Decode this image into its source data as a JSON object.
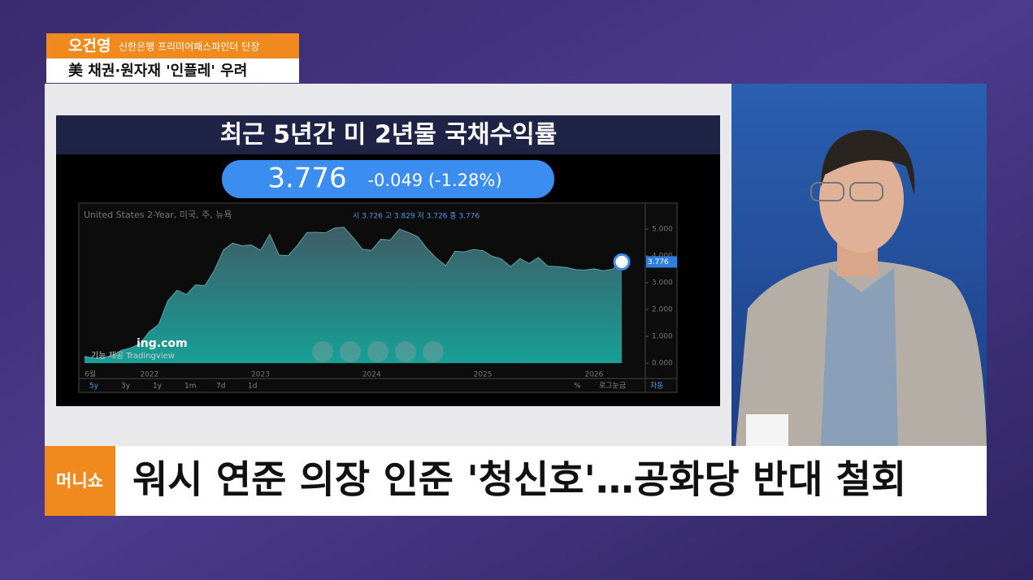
{
  "name_tag": {
    "name": "오건영",
    "role": "신한은행 프리미어패스파인더 단장",
    "topic": "美 채권·원자재 '인플레' 우려"
  },
  "panel": {
    "title": "최근 5년간 미 2년물 국채수익률",
    "price": "3.776",
    "change": "-0.049 (-1.28%)"
  },
  "chart_data": {
    "type": "area",
    "legend_text": "United States 2-Year, 미국, 주, 뉴욕",
    "ohlc_text": "시 3.726 고 3.829 저 3.726 종 3.776",
    "watermark": "ing.com",
    "credit": "기능 제공 Tradingview",
    "categories": [
      "6월",
      null,
      null,
      null,
      null,
      null,
      null,
      "2022",
      null,
      null,
      null,
      null,
      null,
      null,
      null,
      null,
      null,
      null,
      null,
      "2023",
      null,
      null,
      null,
      null,
      null,
      null,
      null,
      null,
      null,
      null,
      null,
      "2024",
      null,
      null,
      null,
      null,
      null,
      null,
      null,
      null,
      null,
      null,
      null,
      "2025",
      null,
      null,
      null,
      null,
      null,
      null,
      null,
      null,
      null,
      null,
      null,
      "2026",
      null,
      null,
      null
    ],
    "values": [
      0.25,
      0.19,
      0.21,
      0.28,
      0.48,
      0.57,
      0.73,
      1.18,
      1.44,
      2.33,
      2.72,
      2.56,
      2.92,
      2.89,
      3.45,
      4.22,
      4.48,
      4.38,
      4.41,
      4.21,
      4.81,
      4.03,
      4.01,
      4.4,
      4.87,
      4.88,
      4.86,
      5.04,
      5.07,
      4.68,
      4.25,
      4.21,
      4.62,
      4.59,
      5.0,
      4.87,
      4.71,
      4.26,
      3.91,
      3.64,
      4.17,
      4.15,
      4.24,
      4.2,
      3.99,
      3.89,
      3.6,
      3.9,
      3.72,
      3.94,
      3.62,
      3.6,
      3.57,
      3.49,
      3.47,
      3.52,
      3.45,
      3.5,
      3.776
    ],
    "color": "#17a097",
    "ylim": [
      -0.15,
      5.88
    ],
    "yticks": [
      {
        "value": 0,
        "label": "0.000"
      },
      {
        "value": 1,
        "label": "1.000"
      },
      {
        "value": 2,
        "label": "2.000"
      },
      {
        "value": 3,
        "label": "3.000"
      },
      {
        "value": 4,
        "label": "4.000"
      },
      {
        "value": 5,
        "label": "5.000"
      }
    ],
    "ranges": [
      "5y",
      "3y",
      "1y",
      "1m",
      "7d",
      "1d"
    ],
    "options": [
      "%",
      "로그눈금",
      "자동"
    ]
  },
  "ticker": {
    "brand": "머니쇼",
    "headline": "워시 연준 의장 인준 '청신호'…공화당 반대 철회"
  }
}
